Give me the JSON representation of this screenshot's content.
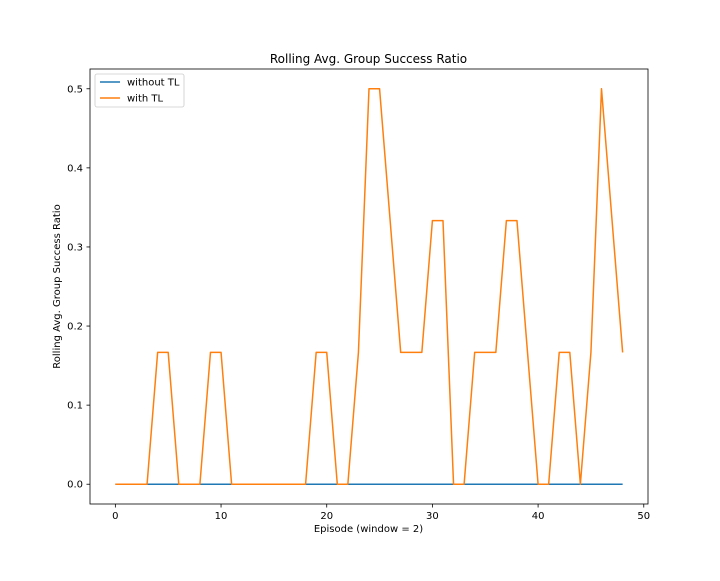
{
  "chart_data": {
    "type": "line",
    "title": "Rolling Avg. Group Success Ratio",
    "xlabel": "Episode (window = 2)",
    "ylabel": "Rolling Avg. Group Success Ratio",
    "xlim": [
      -2.4,
      50.4
    ],
    "ylim": [
      -0.025,
      0.525
    ],
    "xticks": [
      0,
      10,
      20,
      30,
      40,
      50
    ],
    "yticks": [
      0.0,
      0.1,
      0.2,
      0.3,
      0.4,
      0.5
    ],
    "xtick_labels": [
      "0",
      "10",
      "20",
      "30",
      "40",
      "50"
    ],
    "ytick_labels": [
      "0.0",
      "0.1",
      "0.2",
      "0.3",
      "0.4",
      "0.5"
    ],
    "legend_position": "upper-left",
    "grid": false,
    "x": [
      0,
      1,
      2,
      3,
      4,
      5,
      6,
      7,
      8,
      9,
      10,
      11,
      12,
      13,
      14,
      15,
      16,
      17,
      18,
      19,
      20,
      21,
      22,
      23,
      24,
      25,
      26,
      27,
      28,
      29,
      30,
      31,
      32,
      33,
      34,
      35,
      36,
      37,
      38,
      39,
      40,
      41,
      42,
      43,
      44,
      45,
      46,
      47,
      48
    ],
    "series": [
      {
        "name": "without TL",
        "color": "#1f77b4",
        "values": [
          0,
          0,
          0,
          0,
          0,
          0,
          0,
          0,
          0,
          0,
          0,
          0,
          0,
          0,
          0,
          0,
          0,
          0,
          0,
          0,
          0,
          0,
          0,
          0,
          0,
          0,
          0,
          0,
          0,
          0,
          0,
          0,
          0,
          0,
          0,
          0,
          0,
          0,
          0,
          0,
          0,
          0,
          0,
          0,
          0,
          0,
          0,
          0,
          0
        ]
      },
      {
        "name": "with TL",
        "color": "#ff7f0e",
        "values": [
          0,
          0,
          0,
          0,
          0.1667,
          0.1667,
          0,
          0,
          0,
          0.1667,
          0.1667,
          0,
          0,
          0,
          0,
          0,
          0,
          0,
          0,
          0.1667,
          0.1667,
          0,
          0,
          0.1667,
          0.5,
          0.5,
          0.3333,
          0.1667,
          0.1667,
          0.1667,
          0.3333,
          0.3333,
          0,
          0,
          0.1667,
          0.1667,
          0.1667,
          0.3333,
          0.3333,
          0.1667,
          0,
          0,
          0.1667,
          0.1667,
          0,
          0.1667,
          0.5,
          0.3333,
          0.1667
        ]
      }
    ]
  }
}
